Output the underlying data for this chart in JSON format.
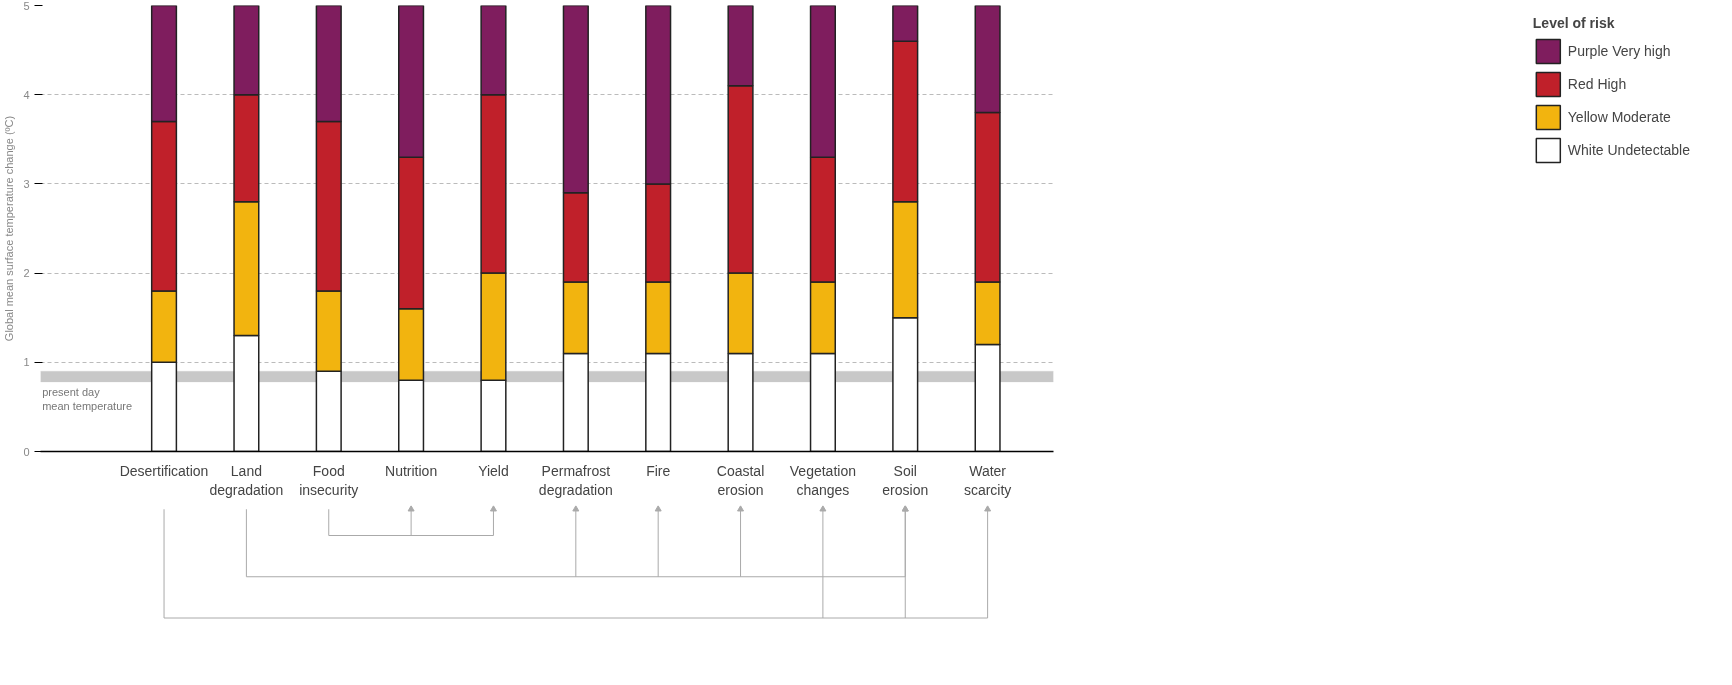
{
  "chart_data": {
    "type": "bar",
    "stacked": true,
    "ylabel": "Global mean surface temperature change (ºC)",
    "legend_title": "Level of risk",
    "categories": [
      "Desertification",
      "Land degradation",
      "Food insecurity",
      "Nutrition",
      "Yield",
      "Permafrost degradation",
      "Fire",
      "Coastal erosion",
      "Vegetation changes",
      "Soil erosion",
      "Water scarcity"
    ],
    "series": [
      {
        "name": "White Undetectable",
        "color": "#ffffff",
        "values": [
          1.0,
          1.3,
          0.9,
          0.8,
          0.8,
          1.1,
          1.1,
          1.1,
          1.1,
          1.5,
          1.2
        ]
      },
      {
        "name": "Yellow Moderate",
        "color": "#f2b40f",
        "values": [
          0.8,
          1.5,
          0.9,
          0.8,
          1.2,
          0.8,
          0.8,
          0.9,
          0.8,
          1.3,
          0.7
        ]
      },
      {
        "name": "Red High",
        "color": "#c0202a",
        "values": [
          1.9,
          1.2,
          1.9,
          1.7,
          2.0,
          1.0,
          1.1,
          2.1,
          1.4,
          1.8,
          1.9
        ]
      },
      {
        "name": "Purple Very high",
        "color": "#7f1d5e",
        "values": [
          1.3,
          1.0,
          1.3,
          1.7,
          1.0,
          2.1,
          2.0,
          0.9,
          1.7,
          0.4,
          1.2
        ]
      }
    ],
    "ylim": [
      0,
      5
    ],
    "yticks": [
      0,
      1,
      2,
      3,
      4,
      5
    ],
    "grid": "y",
    "legend": "right",
    "bands": [
      {
        "axis": "y",
        "from": 0.78,
        "to": 0.9,
        "label": "present day mean temperature",
        "color": "#c8c8c8"
      }
    ]
  }
}
